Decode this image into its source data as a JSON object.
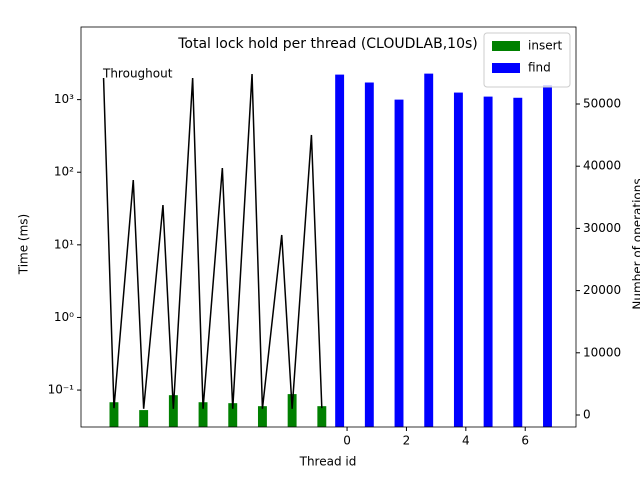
{
  "chart_data": {
    "type": "bar",
    "title": "Total lock hold per thread (CLOUDLAB,10s)",
    "xlabel": "Thread id",
    "ylabel": "Time (ms)",
    "y2label": "Number of operations",
    "annotation": "Throughout",
    "yscale": "log",
    "xlim": [
      -8.96,
      7.71
    ],
    "xticks": [
      0,
      2,
      4,
      6
    ],
    "ylim": [
      0.031,
      10000
    ],
    "yticks": [
      {
        "value": 0.1,
        "label": "10⁻¹"
      },
      {
        "value": 1,
        "label": "10⁰"
      },
      {
        "value": 10,
        "label": "10¹"
      },
      {
        "value": 100,
        "label": "10²"
      },
      {
        "value": 1000,
        "label": "10³"
      }
    ],
    "y2lim": [
      -1930,
      62380
    ],
    "y2ticks": [
      0,
      10000,
      20000,
      30000,
      40000,
      50000
    ],
    "legend": "upper right",
    "series": [
      {
        "name": "insert",
        "type": "bar",
        "color": "#008000",
        "x": [
          -7.85,
          -6.85,
          -5.85,
          -4.85,
          -3.85,
          -2.85,
          -1.85,
          -0.85
        ],
        "values": [
          0.068,
          0.053,
          0.085,
          0.068,
          0.066,
          0.06,
          0.088,
          0.06
        ]
      },
      {
        "name": "find",
        "type": "bar",
        "color": "#0000ff",
        "x": [
          -0.25,
          0.75,
          1.75,
          2.75,
          3.75,
          4.75,
          5.75,
          6.75
        ],
        "values": [
          2210,
          1720,
          1000,
          2280,
          1250,
          1100,
          1060,
          1580
        ]
      },
      {
        "type": "line",
        "axis": "y2",
        "color": "#000000",
        "x": [
          -8.2,
          -7.85,
          -7.2,
          -6.85,
          -6.2,
          -5.85,
          -5.2,
          -4.85,
          -4.2,
          -3.85,
          -3.2,
          -2.85,
          -2.2,
          -1.85,
          -1.2,
          -0.85
        ],
        "values": [
          54180,
          1100,
          37780,
          1000,
          33760,
          1000,
          54180,
          1000,
          39710,
          1000,
          54820,
          1000,
          28940,
          1000,
          45020,
          1100
        ]
      }
    ]
  }
}
